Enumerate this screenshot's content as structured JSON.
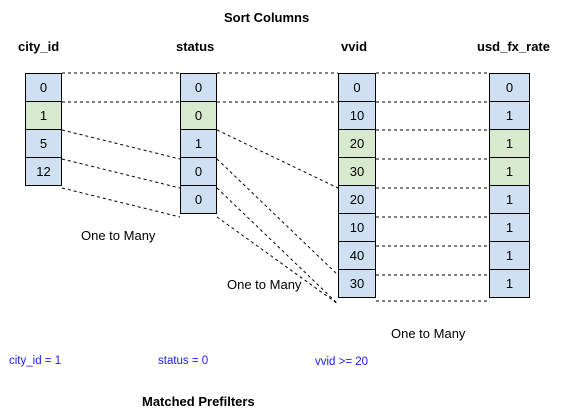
{
  "title": "Sort Columns",
  "footer": "Matched Prefilters",
  "columns": [
    {
      "key": "city_id",
      "header": "city_id",
      "cells": [
        {
          "value": "0",
          "color": "#cfe0f3"
        },
        {
          "value": "1",
          "color": "#d8eacd"
        },
        {
          "value": "5",
          "color": "#cfe0f3"
        },
        {
          "value": "12",
          "color": "#cfe0f3"
        }
      ]
    },
    {
      "key": "status",
      "header": "status",
      "cells": [
        {
          "value": "0",
          "color": "#cfe0f3"
        },
        {
          "value": "0",
          "color": "#d8eacd"
        },
        {
          "value": "1",
          "color": "#cfe0f3"
        },
        {
          "value": "0",
          "color": "#cfe0f3"
        },
        {
          "value": "0",
          "color": "#cfe0f3"
        }
      ]
    },
    {
      "key": "vvid",
      "header": "vvid",
      "cells": [
        {
          "value": "0",
          "color": "#cfe0f3"
        },
        {
          "value": "10",
          "color": "#cfe0f3"
        },
        {
          "value": "20",
          "color": "#d8eacd"
        },
        {
          "value": "30",
          "color": "#d8eacd"
        },
        {
          "value": "20",
          "color": "#cfe0f3"
        },
        {
          "value": "10",
          "color": "#cfe0f3"
        },
        {
          "value": "40",
          "color": "#cfe0f3"
        },
        {
          "value": "30",
          "color": "#cfe0f3"
        }
      ]
    },
    {
      "key": "usd_fx_rate",
      "header": "usd_fx_rate",
      "cells": [
        {
          "value": "0",
          "color": "#cfe0f3"
        },
        {
          "value": "1",
          "color": "#cfe0f3"
        },
        {
          "value": "1",
          "color": "#d8eacd"
        },
        {
          "value": "1",
          "color": "#d8eacd"
        },
        {
          "value": "1",
          "color": "#cfe0f3"
        },
        {
          "value": "1",
          "color": "#cfe0f3"
        },
        {
          "value": "1",
          "color": "#cfe0f3"
        },
        {
          "value": "1",
          "color": "#cfe0f3"
        }
      ]
    }
  ],
  "annotations": {
    "one_to_many_1": "One to Many",
    "one_to_many_2": "One to Many",
    "one_to_many_3": "One to Many"
  },
  "prefilters": {
    "city_id": "city_id = 1",
    "status": "status = 0",
    "vvid": "vvid >= 20"
  },
  "colors": {
    "highlight_green": "#d8eacd",
    "cell_blue": "#cfe0f3",
    "filter_text": "#1a1aff",
    "connector": "#000000"
  }
}
